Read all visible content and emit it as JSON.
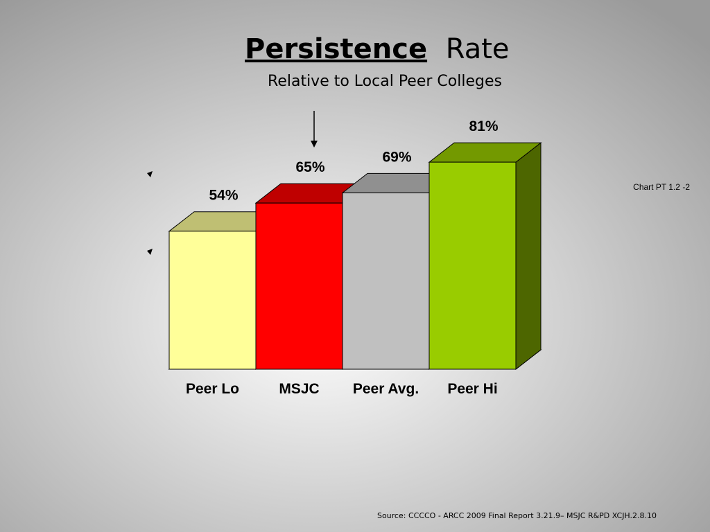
{
  "chart_data": {
    "type": "bar3d",
    "title_parts": [
      "Persistence",
      "Rate"
    ],
    "subtitle": "Relative  to Local Peer Colleges",
    "categories": [
      "Peer Lo",
      "MSJC",
      "Peer Avg.",
      "Peer Hi"
    ],
    "values": [
      54,
      65,
      69,
      81
    ],
    "value_labels": [
      "54%",
      "65%",
      "69%",
      "81%"
    ],
    "colors": [
      "#ffff99",
      "#ff0000",
      "#c0c0c0",
      "#99cc00"
    ],
    "ylim": [
      0,
      100
    ],
    "chart_note": "Chart PT 1.2 -2",
    "source": "Source: CCCCO - ARCC 2009 Final Report 3.21.9– MSJC R&PD XCJH.2.8.10"
  }
}
